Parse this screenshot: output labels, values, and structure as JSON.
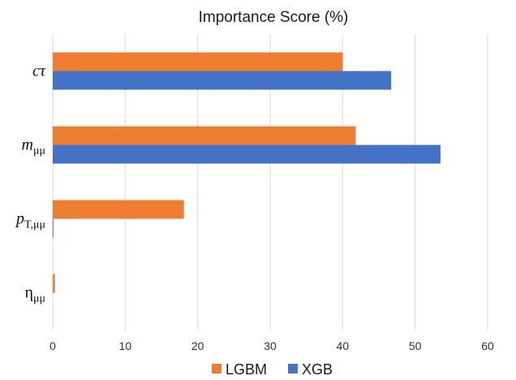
{
  "chart_data": {
    "type": "bar",
    "orientation": "horizontal",
    "title": "Importance Score (%)",
    "xlabel": "",
    "ylabel": "",
    "xlim": [
      0,
      60
    ],
    "xticks": [
      "0",
      "10",
      "20",
      "30",
      "40",
      "50",
      "60"
    ],
    "grid": true,
    "legend_position": "bottom",
    "categories": [
      {
        "base": "cτ",
        "sub": ""
      },
      {
        "base": "m",
        "sub": "μμ"
      },
      {
        "base": "p",
        "sub": "T,μμ"
      },
      {
        "base": "η",
        "sub": "μμ"
      }
    ],
    "series": [
      {
        "name": "LGBM",
        "color": "#ed7d31",
        "values": [
          40.0,
          41.8,
          18.1,
          0.3
        ]
      },
      {
        "name": "XGB",
        "color": "#4472c4",
        "values": [
          46.7,
          53.5,
          0.1,
          0.0
        ]
      }
    ]
  }
}
